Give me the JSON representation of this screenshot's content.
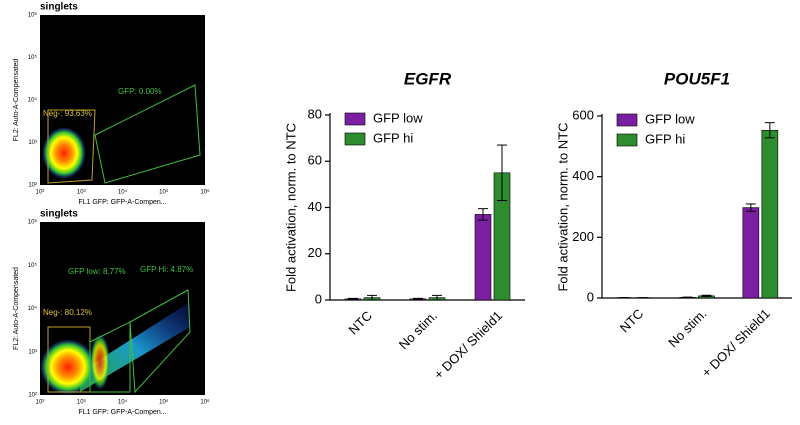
{
  "flow_panels": [
    {
      "title": "singlets",
      "y_label": "FL2: Auto-A-Compensated",
      "x_label": "FL1 GFP: GFP-A-Compen...",
      "gates": [
        "Neg-: 93.63%",
        "GFP: 0.00%"
      ]
    },
    {
      "title": "singlets",
      "y_label": "FL2: Auto-A-Compensated",
      "x_label": "FL1 GFP: GFP-A-Compen...",
      "gates": [
        "Neg-: 80.12%",
        "GFP low: 8.77%",
        "GFP Hi: 4.87%"
      ]
    }
  ],
  "flow_ticks": [
    "10²",
    "10³",
    "10⁴",
    "10⁵",
    "10⁶"
  ],
  "chart_data": [
    {
      "type": "bar",
      "title": "EGFR",
      "y_label": "Fold activation, norm. to NTC",
      "categories": [
        "NTC",
        "No stim.",
        "+ DOX/ Shield1"
      ],
      "series": [
        {
          "name": "GFP low",
          "color": "#7b1fa2",
          "values": [
            0.5,
            0.5,
            37
          ],
          "errors": [
            0.2,
            0.2,
            2.5
          ]
        },
        {
          "name": "GFP hi",
          "color": "#2e8b2e",
          "values": [
            1,
            1,
            55
          ],
          "errors": [
            1,
            1,
            12
          ]
        }
      ],
      "ylim": [
        0,
        80
      ],
      "yticks": [
        0,
        20,
        40,
        60,
        80
      ],
      "legend": "top-left"
    },
    {
      "type": "bar",
      "title": "POU5F1",
      "y_label": "Fold activation, norm. to NTC",
      "categories": [
        "NTC",
        "No stim.",
        "+ DOX/ Shield1"
      ],
      "series": [
        {
          "name": "GFP low",
          "color": "#7b1fa2",
          "values": [
            1,
            2,
            298
          ],
          "errors": [
            0,
            1,
            12
          ]
        },
        {
          "name": "GFP hi",
          "color": "#2e8b2e",
          "values": [
            1,
            7,
            553
          ],
          "errors": [
            0,
            2,
            25
          ]
        }
      ],
      "ylim": [
        0,
        600
      ],
      "yticks": [
        0,
        200,
        400,
        600
      ],
      "legend": "top-left"
    }
  ]
}
